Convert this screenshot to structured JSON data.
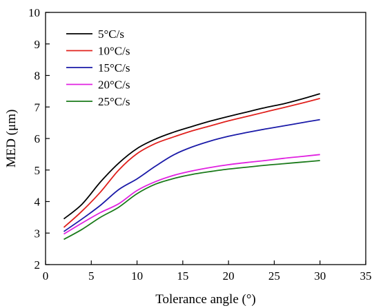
{
  "chart_data": {
    "type": "line",
    "title": "",
    "xlabel": "Tolerance angle (°)",
    "ylabel": "MED (μm)",
    "xlim": [
      0,
      35
    ],
    "ylim": [
      2,
      10
    ],
    "xticks": [
      0,
      5,
      10,
      15,
      20,
      25,
      30,
      35
    ],
    "yticks": [
      2,
      3,
      4,
      5,
      6,
      7,
      8,
      9,
      10
    ],
    "grid": false,
    "legend_position": "top-left",
    "series": [
      {
        "name": "5°C/s",
        "color": "#000000",
        "points": [
          [
            2,
            3.45
          ],
          [
            4,
            3.92
          ],
          [
            6,
            4.62
          ],
          [
            8,
            5.22
          ],
          [
            10,
            5.68
          ],
          [
            12,
            5.98
          ],
          [
            14,
            6.2
          ],
          [
            16,
            6.38
          ],
          [
            18,
            6.55
          ],
          [
            20,
            6.7
          ],
          [
            22,
            6.84
          ],
          [
            24,
            6.98
          ],
          [
            26,
            7.1
          ],
          [
            28,
            7.25
          ],
          [
            30,
            7.42
          ]
        ]
      },
      {
        "name": "10°C/s",
        "color": "#e0201c",
        "points": [
          [
            2,
            3.18
          ],
          [
            4,
            3.7
          ],
          [
            6,
            4.3
          ],
          [
            8,
            5.0
          ],
          [
            10,
            5.52
          ],
          [
            12,
            5.84
          ],
          [
            14,
            6.05
          ],
          [
            16,
            6.24
          ],
          [
            18,
            6.4
          ],
          [
            20,
            6.56
          ],
          [
            22,
            6.7
          ],
          [
            24,
            6.84
          ],
          [
            26,
            6.98
          ],
          [
            28,
            7.12
          ],
          [
            30,
            7.27
          ]
        ]
      },
      {
        "name": "15°C/s",
        "color": "#1a1aa8",
        "points": [
          [
            2,
            3.05
          ],
          [
            4,
            3.45
          ],
          [
            6,
            3.88
          ],
          [
            8,
            4.38
          ],
          [
            10,
            4.72
          ],
          [
            12,
            5.12
          ],
          [
            14,
            5.48
          ],
          [
            16,
            5.73
          ],
          [
            18,
            5.92
          ],
          [
            20,
            6.07
          ],
          [
            22,
            6.19
          ],
          [
            24,
            6.3
          ],
          [
            26,
            6.4
          ],
          [
            28,
            6.5
          ],
          [
            30,
            6.6
          ]
        ]
      },
      {
        "name": "20°C/s",
        "color": "#e020e0",
        "points": [
          [
            2,
            2.97
          ],
          [
            4,
            3.32
          ],
          [
            6,
            3.65
          ],
          [
            8,
            3.93
          ],
          [
            10,
            4.35
          ],
          [
            12,
            4.63
          ],
          [
            14,
            4.83
          ],
          [
            16,
            4.97
          ],
          [
            18,
            5.08
          ],
          [
            20,
            5.17
          ],
          [
            22,
            5.24
          ],
          [
            24,
            5.3
          ],
          [
            26,
            5.37
          ],
          [
            28,
            5.43
          ],
          [
            30,
            5.49
          ]
        ]
      },
      {
        "name": "25°C/s",
        "color": "#1a7a1a",
        "points": [
          [
            2,
            2.8
          ],
          [
            4,
            3.12
          ],
          [
            6,
            3.5
          ],
          [
            8,
            3.82
          ],
          [
            10,
            4.25
          ],
          [
            12,
            4.55
          ],
          [
            14,
            4.73
          ],
          [
            16,
            4.86
          ],
          [
            18,
            4.95
          ],
          [
            20,
            5.03
          ],
          [
            22,
            5.09
          ],
          [
            24,
            5.15
          ],
          [
            26,
            5.2
          ],
          [
            28,
            5.25
          ],
          [
            30,
            5.3
          ]
        ]
      }
    ]
  }
}
